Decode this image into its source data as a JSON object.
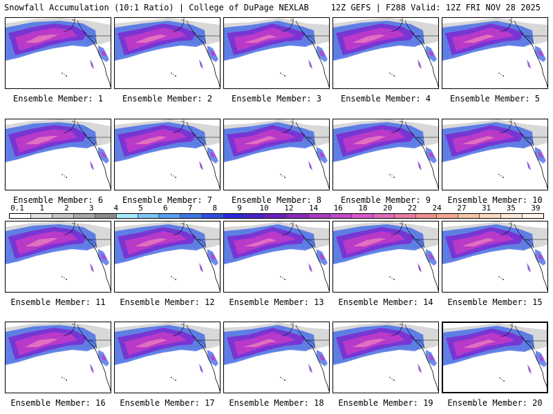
{
  "header": {
    "left": "Snowfall Accumulation (10:1 Ratio) | College of DuPage NEXLAB",
    "right": "12Z GEFS | F288 Valid: 12Z FRI NOV 28 2025"
  },
  "colorbar": {
    "labels": [
      "0.1",
      "1",
      "2",
      "3",
      "4",
      "5",
      "6",
      "7",
      "8",
      "9",
      "10",
      "12",
      "14",
      "16",
      "18",
      "20",
      "22",
      "24",
      "27",
      "31",
      "35",
      "39"
    ],
    "colors": [
      "#ffffff",
      "#e2e2e2",
      "#c4c4c4",
      "#a8a8a8",
      "#8c8c8c",
      "#a8e9ff",
      "#7fc4f7",
      "#5c9ef0",
      "#3f76e6",
      "#2f4fe0",
      "#2b28d8",
      "#4a22c8",
      "#6a1fbf",
      "#8a2bbd",
      "#a83cc2",
      "#c24ac8",
      "#d55ac9",
      "#e06ab8",
      "#e67ba3",
      "#ec8f8f",
      "#f1a890",
      "#f6c2a4",
      "#f9d9bf",
      "#fce9d8",
      "#fff6ec"
    ]
  },
  "members": [
    {
      "label": "Ensemble Member: 1"
    },
    {
      "label": "Ensemble Member: 2"
    },
    {
      "label": "Ensemble Member: 3"
    },
    {
      "label": "Ensemble Member: 4"
    },
    {
      "label": "Ensemble Member: 5"
    },
    {
      "label": "Ensemble Member: 6"
    },
    {
      "label": "Ensemble Member: 7"
    },
    {
      "label": "Ensemble Member: 8"
    },
    {
      "label": "Ensemble Member: 9"
    },
    {
      "label": "Ensemble Member: 10"
    },
    {
      "label": "Ensemble Member: 11"
    },
    {
      "label": "Ensemble Member: 12"
    },
    {
      "label": "Ensemble Member: 13"
    },
    {
      "label": "Ensemble Member: 14"
    },
    {
      "label": "Ensemble Member: 15"
    },
    {
      "label": "Ensemble Member: 16"
    },
    {
      "label": "Ensemble Member: 17"
    },
    {
      "label": "Ensemble Member: 18"
    },
    {
      "label": "Ensemble Member: 19"
    },
    {
      "label": "Ensemble Member: 20"
    }
  ],
  "map_colors": {
    "land": "#ffffff",
    "light_snow": "#b8b8b8",
    "blue_snow": "#4a6ee6",
    "purple_snow": "#7a2fd0",
    "magenta_snow": "#c03ac8",
    "pink_core": "#e070c0",
    "border": "#000000"
  }
}
